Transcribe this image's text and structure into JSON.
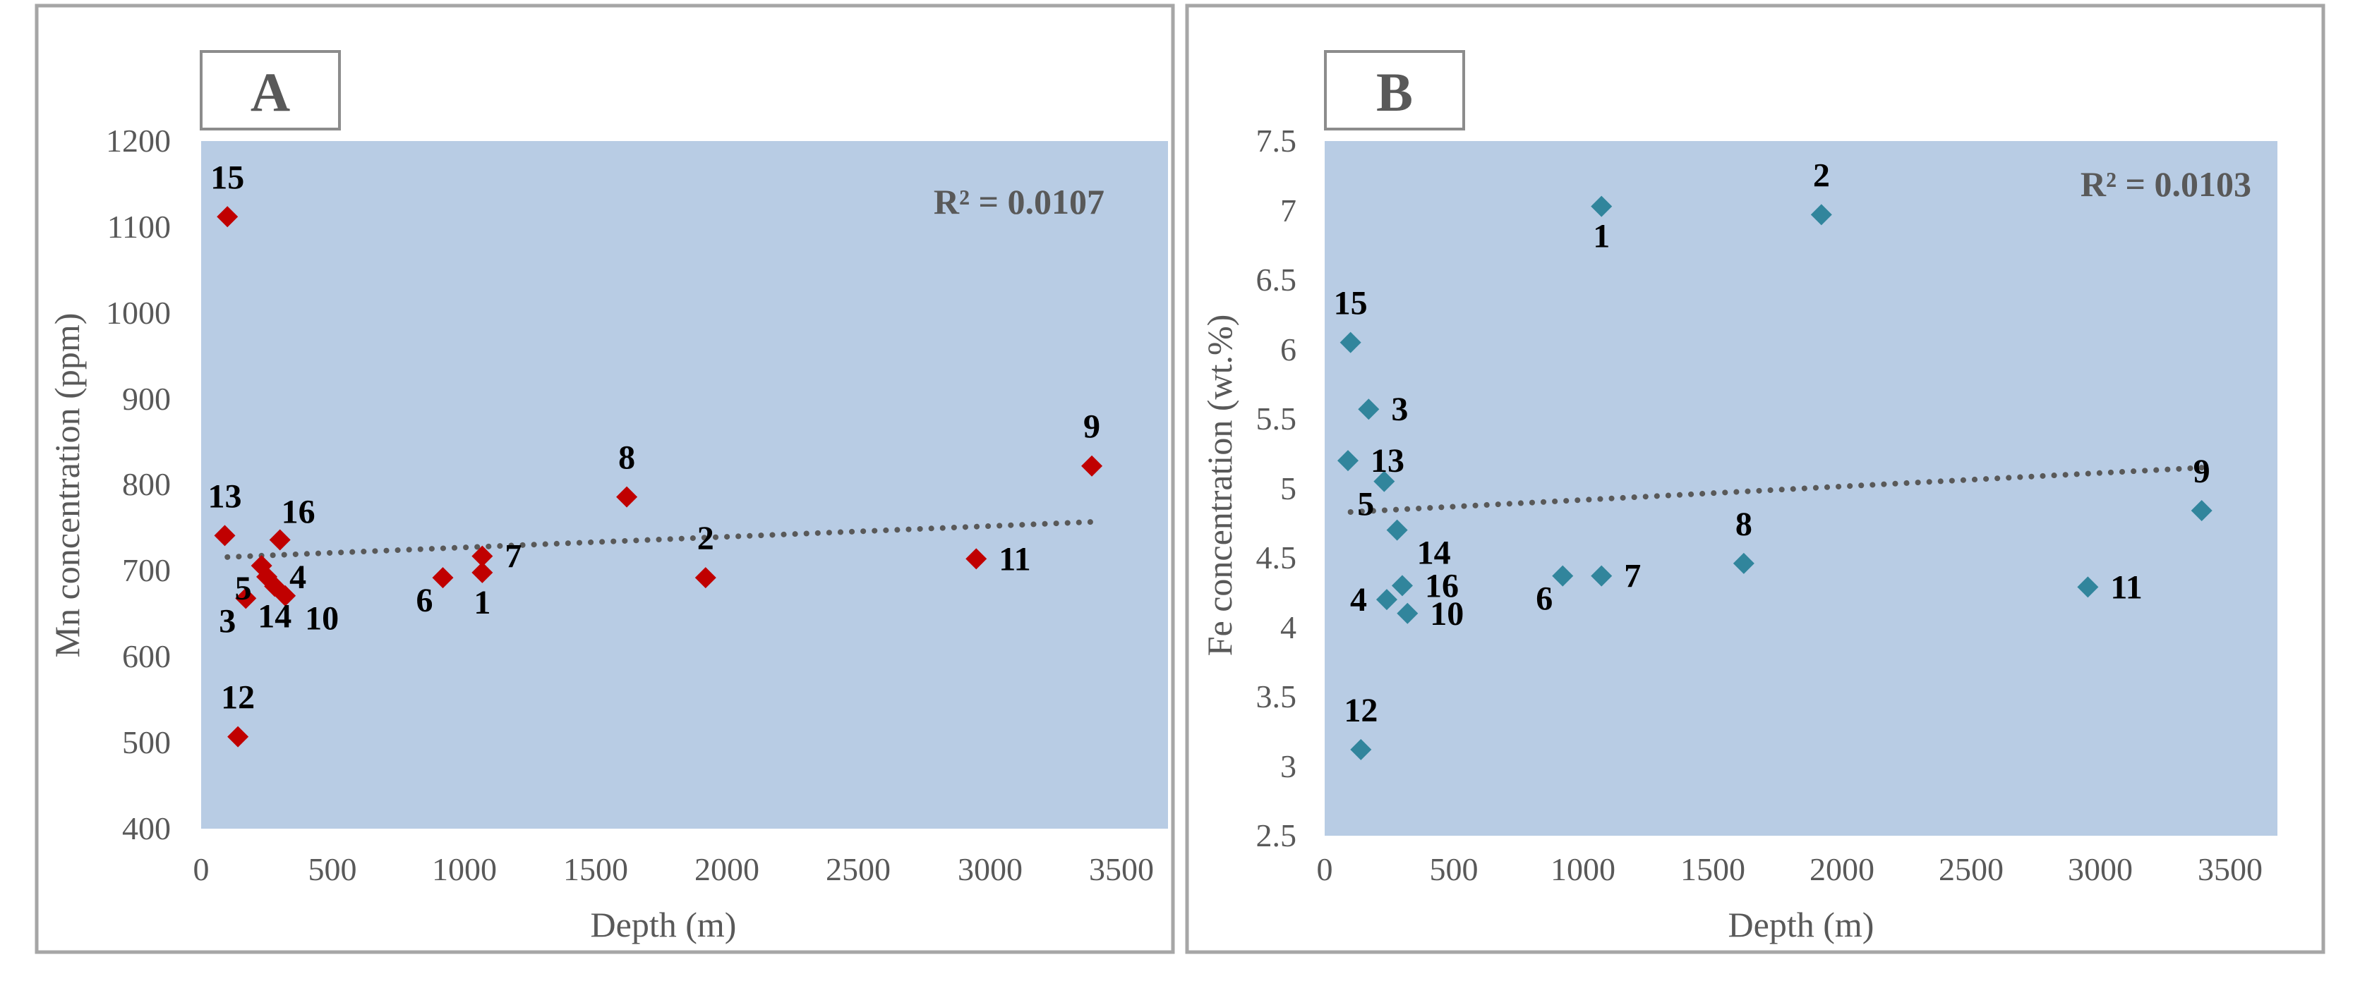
{
  "colors": {
    "plot_background": "#b8cce4",
    "panel_a_marker": "#c00000",
    "panel_b_marker": "#31859c",
    "trendline": "#595959"
  },
  "chart_data": [
    {
      "type": "scatter",
      "panel_letter": "A",
      "title": "",
      "xlabel": "Depth (m)",
      "ylabel": "Mn concentration (ppm)",
      "xlim": [
        0,
        3500
      ],
      "ylim": [
        400,
        1200
      ],
      "xticks": [
        0,
        500,
        1000,
        1500,
        2000,
        2500,
        3000,
        3500
      ],
      "yticks": [
        400,
        500,
        600,
        700,
        800,
        900,
        1000,
        1100,
        1200
      ],
      "xtick_labels": [
        "0",
        "500",
        "1000",
        "1500",
        "2000",
        "2500",
        "3000",
        "3500"
      ],
      "ytick_labels": [
        "400",
        "500",
        "600",
        "700",
        "800",
        "900",
        "1000",
        "1100",
        "1200"
      ],
      "r_squared_label": "R² = 0.0107",
      "trendline": {
        "x_start": 100,
        "y_start": 716,
        "x_end": 3400,
        "y_end": 757
      },
      "grid": false,
      "points": [
        {
          "label": "15",
          "x": 100,
          "y": 1112,
          "label_pos": "above"
        },
        {
          "label": "13",
          "x": 90,
          "y": 741,
          "label_pos": "above"
        },
        {
          "label": "16",
          "x": 300,
          "y": 736,
          "label_pos": "above-right"
        },
        {
          "label": "5",
          "x": 230,
          "y": 706,
          "label_pos": "below-left"
        },
        {
          "label": "4",
          "x": 250,
          "y": 693,
          "label_pos": "right"
        },
        {
          "label": "3",
          "x": 170,
          "y": 668,
          "label_pos": "below-left"
        },
        {
          "label": "14",
          "x": 280,
          "y": 682,
          "label_pos": "below"
        },
        {
          "label": "10",
          "x": 320,
          "y": 671,
          "label_pos": "below-right"
        },
        {
          "label": "12",
          "x": 140,
          "y": 507,
          "label_pos": "above"
        },
        {
          "label": "6",
          "x": 920,
          "y": 692,
          "label_pos": "below-left"
        },
        {
          "label": "7",
          "x": 1070,
          "y": 717,
          "label_pos": "right"
        },
        {
          "label": "1",
          "x": 1070,
          "y": 698,
          "label_pos": "below"
        },
        {
          "label": "8",
          "x": 1620,
          "y": 786,
          "label_pos": "above"
        },
        {
          "label": "2",
          "x": 1920,
          "y": 692,
          "label_pos": "above"
        },
        {
          "label": "11",
          "x": 2950,
          "y": 714,
          "label_pos": "right"
        },
        {
          "label": "9",
          "x": 3390,
          "y": 822,
          "label_pos": "above"
        }
      ]
    },
    {
      "type": "scatter",
      "panel_letter": "B",
      "title": "",
      "xlabel": "Depth (m)",
      "ylabel": "Fe concentration (wt.%)",
      "xlim": [
        0,
        3500
      ],
      "ylim": [
        2.5,
        7.5
      ],
      "xticks": [
        0,
        500,
        1000,
        1500,
        2000,
        2500,
        3000,
        3500
      ],
      "yticks": [
        2.5,
        3,
        3.5,
        4,
        4.5,
        5,
        5.5,
        6,
        6.5,
        7,
        7.5
      ],
      "xtick_labels": [
        "0",
        "500",
        "1000",
        "1500",
        "2000",
        "2500",
        "3000",
        "3500"
      ],
      "ytick_labels": [
        "2.5",
        "3",
        "3.5",
        "4",
        "4.5",
        "5",
        "5.5",
        "6",
        "6.5",
        "7",
        "7.5"
      ],
      "r_squared_label": "R² = 0.0103",
      "trendline": {
        "x_start": 100,
        "y_start": 4.83,
        "x_end": 3400,
        "y_end": 5.15
      },
      "grid": false,
      "points": [
        {
          "label": "1",
          "x": 1070,
          "y": 7.03,
          "label_pos": "below"
        },
        {
          "label": "2",
          "x": 1920,
          "y": 6.97,
          "label_pos": "above"
        },
        {
          "label": "15",
          "x": 100,
          "y": 6.05,
          "label_pos": "above"
        },
        {
          "label": "3",
          "x": 170,
          "y": 5.57,
          "label_pos": "right"
        },
        {
          "label": "13",
          "x": 90,
          "y": 5.2,
          "label_pos": "right"
        },
        {
          "label": "5",
          "x": 230,
          "y": 5.05,
          "label_pos": "below-left"
        },
        {
          "label": "14",
          "x": 280,
          "y": 4.7,
          "label_pos": "below-right"
        },
        {
          "label": "16",
          "x": 300,
          "y": 4.3,
          "label_pos": "right"
        },
        {
          "label": "4",
          "x": 240,
          "y": 4.2,
          "label_pos": "left"
        },
        {
          "label": "10",
          "x": 320,
          "y": 4.1,
          "label_pos": "right"
        },
        {
          "label": "6",
          "x": 920,
          "y": 4.37,
          "label_pos": "below-left"
        },
        {
          "label": "7",
          "x": 1070,
          "y": 4.37,
          "label_pos": "right"
        },
        {
          "label": "8",
          "x": 1620,
          "y": 4.46,
          "label_pos": "above"
        },
        {
          "label": "12",
          "x": 140,
          "y": 3.12,
          "label_pos": "above"
        },
        {
          "label": "11",
          "x": 2950,
          "y": 4.29,
          "label_pos": "right"
        },
        {
          "label": "9",
          "x": 3390,
          "y": 4.84,
          "label_pos": "above"
        }
      ]
    }
  ]
}
